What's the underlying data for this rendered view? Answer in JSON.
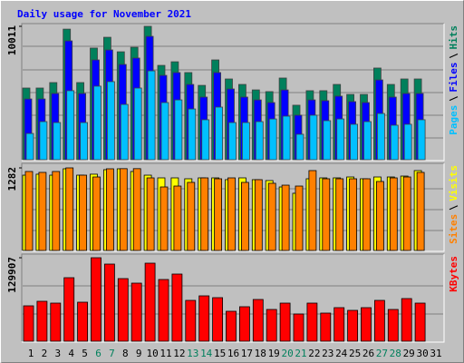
{
  "chart_data": [
    {
      "type": "bar",
      "title": "Daily usage for November 2021",
      "title_color": "#0000ff",
      "ylim": [
        0,
        10011
      ],
      "yticks": [
        10011
      ],
      "series": [
        {
          "name": "Hits",
          "color": "#00805c",
          "values": [
            5380,
            5380,
            5790,
            9800,
            5790,
            8380,
            9190,
            8100,
            8440,
            10011,
            7080,
            7350,
            6540,
            5580,
            7490,
            6060,
            5650,
            5240,
            5110,
            6130,
            4090,
            5180,
            5180,
            5650,
            4900,
            4900,
            6880,
            5650,
            6060,
            6060,
            null
          ]
        },
        {
          "name": "Files",
          "color": "#0000ff",
          "values": [
            4560,
            4560,
            4970,
            8920,
            4970,
            7490,
            8240,
            7150,
            7630,
            9260,
            6330,
            6540,
            5650,
            4700,
            6540,
            5310,
            4700,
            4490,
            4290,
            5240,
            3340,
            4490,
            4430,
            4770,
            4360,
            4290,
            5990,
            4700,
            4970,
            4970,
            null
          ]
        },
        {
          "name": "Pages",
          "color": "#00c0ff",
          "values": [
            1970,
            2860,
            2790,
            5180,
            2790,
            5520,
            5860,
            4150,
            5380,
            6670,
            4290,
            4490,
            3810,
            3000,
            3950,
            2790,
            2790,
            2860,
            3060,
            3270,
            1910,
            3340,
            2930,
            3060,
            2660,
            2860,
            3470,
            2590,
            2660,
            3000,
            null
          ]
        }
      ]
    },
    {
      "type": "bar",
      "ylim": [
        0,
        1282
      ],
      "yticks": [
        1282
      ],
      "series": [
        {
          "name": "Visits",
          "color": "#ffff00",
          "values": [
            1169,
            1184,
            1169,
            1268,
            1169,
            1184,
            1254,
            1268,
            1226,
            1169,
            1127,
            1127,
            1113,
            1127,
            1127,
            1099,
            1127,
            1099,
            1085,
            986,
            888,
            1113,
            1127,
            1127,
            1141,
            1113,
            1141,
            1141,
            1155,
            1240,
            null
          ]
        },
        {
          "name": "Sites",
          "color": "#ff8000",
          "values": [
            1226,
            1212,
            1226,
            1282,
            1169,
            1141,
            1268,
            1270,
            1270,
            1127,
            986,
            1000,
            1057,
            1127,
            1113,
            1127,
            1057,
            1099,
            1043,
            1014,
            1000,
            1240,
            1113,
            1113,
            1113,
            1113,
            1071,
            1127,
            1141,
            1212,
            null
          ]
        }
      ]
    },
    {
      "type": "bar",
      "ylim": [
        0,
        129907
      ],
      "yticks": [
        129907
      ],
      "categories": [
        "1",
        "2",
        "3",
        "4",
        "5",
        "6",
        "7",
        "8",
        "9",
        "10",
        "11",
        "12",
        "13",
        "14",
        "15",
        "16",
        "17",
        "18",
        "19",
        "20",
        "21",
        "22",
        "23",
        "24",
        "25",
        "26",
        "27",
        "28",
        "29",
        "30",
        "31"
      ],
      "weekend_categories": [
        "6",
        "7",
        "13",
        "14",
        "20",
        "21",
        "27",
        "28"
      ],
      "weekend_color": "#00805c",
      "series": [
        {
          "name": "KBytes",
          "color": "#ff0000",
          "values": [
            55070,
            62130,
            59300,
            98840,
            60720,
            129907,
            120020,
            97430,
            90370,
            121430,
            96020,
            104490,
            63540,
            70600,
            67780,
            46600,
            53660,
            64950,
            49420,
            59300,
            42360,
            59300,
            43770,
            52240,
            48010,
            52240,
            63540,
            49420,
            66360,
            59300,
            null
          ]
        }
      ]
    }
  ]
}
